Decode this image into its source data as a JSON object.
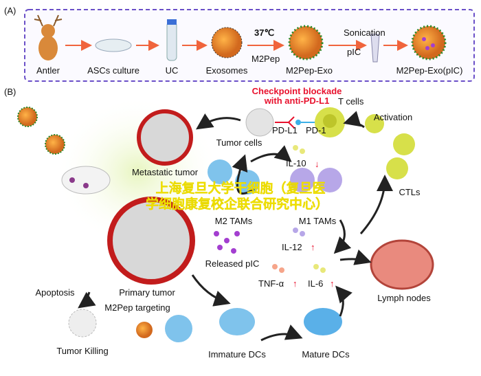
{
  "panel_a": {
    "label": "(A)",
    "steps": [
      "Antler",
      "ASCs culture",
      "UC",
      "Exosomes",
      "M2Pep-Exo",
      "M2Pep-Exo(pIC)"
    ],
    "temperature": "37℃",
    "peptide": "M2Pep",
    "sonication": "Sonication",
    "pic": "pIC",
    "border_color": "#6a4fc8"
  },
  "panel_b": {
    "label": "(B)",
    "checkpoint_line1": "Checkpoint blockade",
    "checkpoint_line2": "with anti-PD-L1",
    "t_cells": "T cells",
    "pd_l1": "PD-L1",
    "pd_1": "PD-1",
    "tumor_cells": "Tumor cells",
    "activation": "Activation",
    "il10": "IL-10",
    "metastatic_tumor": "Metastatic tumor",
    "m2_tams": "M2 TAMs",
    "m1_tams": "M1 TAMs",
    "ctls": "CTLs",
    "il12": "IL-12",
    "released_pic": "Released pIC",
    "tnf": "TNF-α",
    "il6": "IL-6",
    "lymph_nodes": "Lymph nodes",
    "apoptosis": "Apoptosis",
    "primary_tumor": "Primary tumor",
    "m2pep_targeting": "M2Pep targeting",
    "tumor_killing": "Tumor Killing",
    "immature_dcs": "Immature DCs",
    "mature_dcs": "Mature DCs",
    "up_arrow": "↑",
    "down_arrow": "↓",
    "accent_red": "#e8112d"
  },
  "watermark": {
    "line1": "上海复旦大学干细胞（复旦医",
    "line2": "学细胞康复校企联合研究中心）"
  }
}
